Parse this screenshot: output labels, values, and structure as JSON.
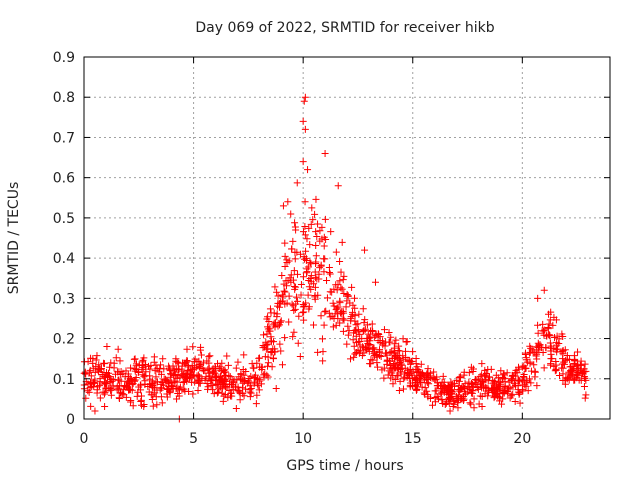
{
  "chart_data": {
    "type": "scatter",
    "title": "Day 069 of 2022, SRMTID for receiver hikb",
    "xlabel": "GPS time / hours",
    "ylabel": "SRMTID / TECUs",
    "xlim": [
      0,
      24
    ],
    "ylim": [
      0,
      0.9
    ],
    "xticks": [
      0,
      5,
      10,
      15,
      20
    ],
    "yticks": [
      0,
      0.1,
      0.2,
      0.3,
      0.4,
      0.5,
      0.6,
      0.7,
      0.8,
      0.9
    ],
    "xtick_labels": [
      "0",
      "5",
      "10",
      "15",
      "20"
    ],
    "ytick_labels": [
      "0",
      "0.1",
      "0.2",
      "0.3",
      "0.4",
      "0.5",
      "0.6",
      "0.7",
      "0.8",
      "0.9"
    ],
    "grid": true,
    "marker": "+",
    "color": "#ff0000",
    "trend": {
      "description": "approximate envelope of the point cloud (time in hours, SRMTID in TECUs)",
      "x": [
        0.0,
        1.0,
        2.0,
        3.0,
        4.0,
        5.0,
        6.0,
        7.0,
        8.0,
        8.5,
        9.0,
        9.5,
        10.0,
        10.5,
        11.0,
        11.5,
        12.0,
        12.5,
        13.0,
        13.5,
        14.0,
        15.0,
        16.0,
        17.0,
        18.0,
        19.0,
        20.0,
        20.5,
        21.0,
        21.5,
        22.0,
        22.9
      ],
      "center": [
        0.1,
        0.1,
        0.09,
        0.1,
        0.09,
        0.11,
        0.1,
        0.09,
        0.11,
        0.18,
        0.28,
        0.33,
        0.38,
        0.4,
        0.34,
        0.3,
        0.26,
        0.22,
        0.2,
        0.17,
        0.15,
        0.12,
        0.08,
        0.06,
        0.09,
        0.08,
        0.1,
        0.14,
        0.22,
        0.18,
        0.13,
        0.11
      ],
      "spread": [
        0.04,
        0.05,
        0.04,
        0.05,
        0.04,
        0.05,
        0.04,
        0.04,
        0.05,
        0.08,
        0.13,
        0.14,
        0.17,
        0.16,
        0.13,
        0.11,
        0.09,
        0.07,
        0.06,
        0.05,
        0.05,
        0.04,
        0.03,
        0.03,
        0.04,
        0.03,
        0.04,
        0.05,
        0.07,
        0.06,
        0.04,
        0.04
      ]
    },
    "extremes": [
      {
        "x": 10.1,
        "y": 0.8
      },
      {
        "x": 10.05,
        "y": 0.79
      },
      {
        "x": 10.0,
        "y": 0.74
      },
      {
        "x": 10.1,
        "y": 0.72
      },
      {
        "x": 10.0,
        "y": 0.64
      },
      {
        "x": 10.2,
        "y": 0.62
      },
      {
        "x": 11.0,
        "y": 0.66
      },
      {
        "x": 9.1,
        "y": 0.53
      },
      {
        "x": 9.3,
        "y": 0.54
      },
      {
        "x": 11.6,
        "y": 0.58
      },
      {
        "x": 12.8,
        "y": 0.42
      },
      {
        "x": 13.3,
        "y": 0.34
      },
      {
        "x": 4.35,
        "y": 0.0
      },
      {
        "x": 0.5,
        "y": 0.02
      },
      {
        "x": 21.0,
        "y": 0.32
      },
      {
        "x": 20.7,
        "y": 0.3
      },
      {
        "x": 22.9,
        "y": 0.06
      }
    ],
    "x_end": 22.9,
    "n_points": 1500
  }
}
